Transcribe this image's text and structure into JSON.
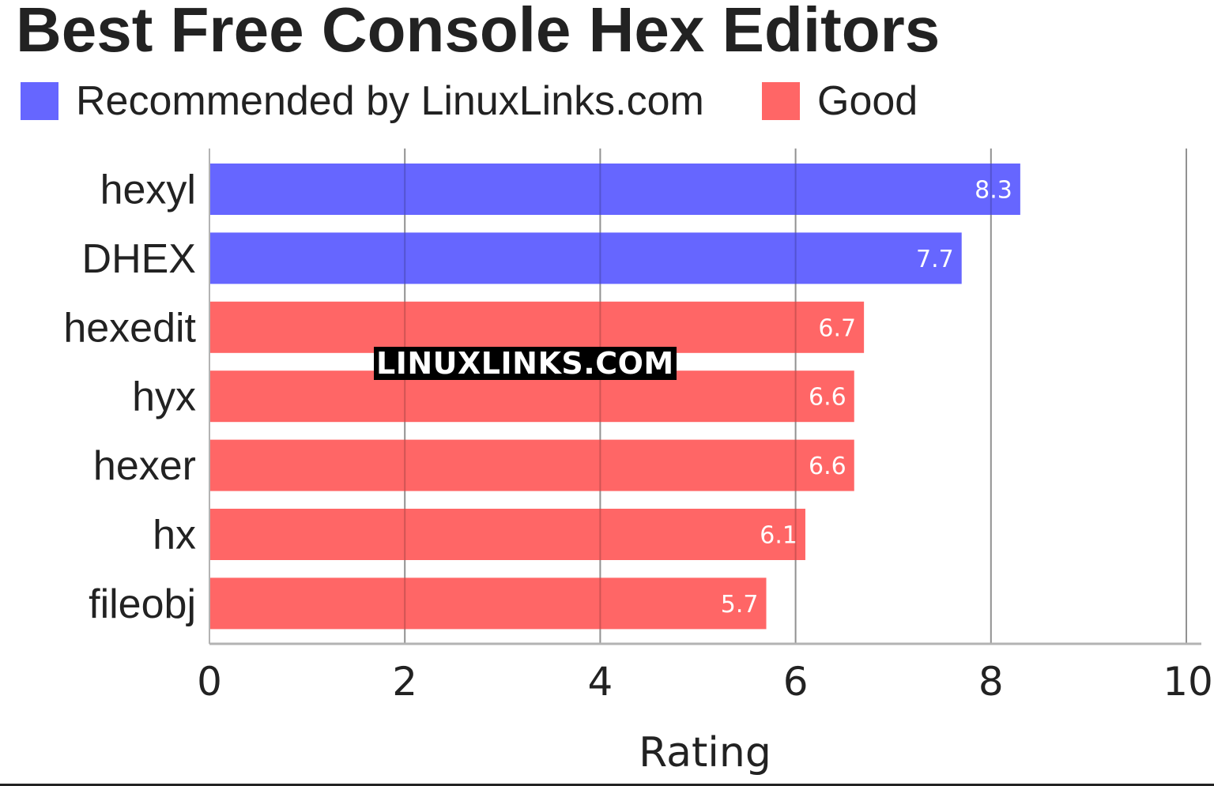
{
  "chart_data": {
    "type": "bar",
    "orientation": "horizontal",
    "title": "Best Free Console Hex Editors",
    "xlabel": "Rating",
    "ylabel": "",
    "xlim": [
      0,
      10
    ],
    "xticks": [
      "0",
      "2",
      "4",
      "6",
      "8",
      "10"
    ],
    "grid": true,
    "legend_position": "top-left",
    "categories": [
      "hexyl",
      "DHEX",
      "hexedit",
      "hyx",
      "hexer",
      "hx",
      "fileobj"
    ],
    "values": [
      8.3,
      7.7,
      6.7,
      6.6,
      6.6,
      6.1,
      5.7
    ],
    "value_labels": [
      "8.3",
      "7.7",
      "6.7",
      "6.6",
      "6.6",
      "6.1",
      "5.7"
    ],
    "groups": [
      "Recommended by LinuxLinks.com",
      "Recommended by LinuxLinks.com",
      "Good",
      "Good",
      "Good",
      "Good",
      "Good"
    ],
    "legend": [
      {
        "label": "Recommended by LinuxLinks.com",
        "color": "#6666ff"
      },
      {
        "label": "Good",
        "color": "#ff6666"
      }
    ]
  },
  "watermark": "LINUXLINKS.COM",
  "colors": {
    "recommended": "#6666ff",
    "good": "#ff6666",
    "gridline": "#b3b3b3",
    "text": "#222222",
    "bar_label": "#ffffff"
  }
}
